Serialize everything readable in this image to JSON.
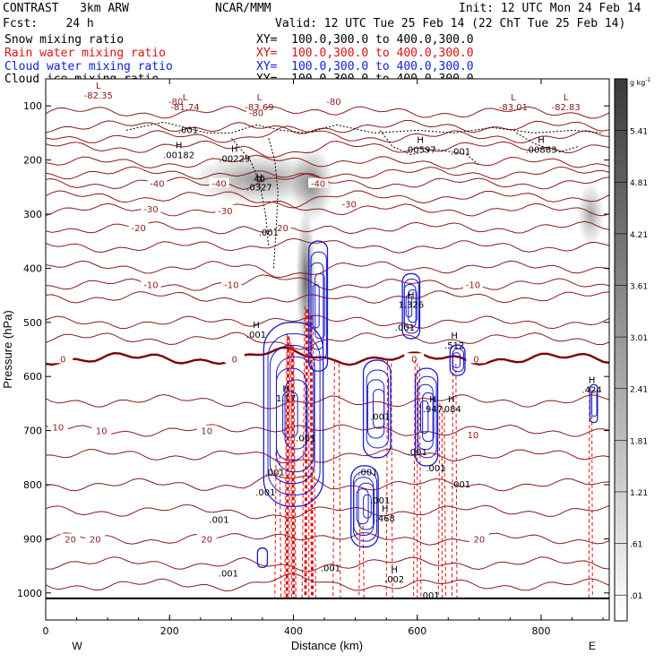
{
  "header": {
    "model": "CONTRAST   3km ARW",
    "center": "NCAR/MMM",
    "init": "Init: 12 UTC Mon 24 Feb 14",
    "fcst": "Fcst:    24 h",
    "valid": "Valid: 12 UTC Tue 25 Feb 14 (22 ChT Tue 25 Feb 14)",
    "fields": [
      {
        "label": "Snow mixing ratio",
        "xy": "XY=  100.0,300.0 to 400.0,300.0",
        "color": "#000000"
      },
      {
        "label": "Rain water mixing ratio",
        "xy": "XY=  100.0,300.0 to 400.0,300.0",
        "color": "#e01010"
      },
      {
        "label": "Cloud water mixing ratio",
        "xy": "XY=  100.0,300.0 to 400.0,300.0",
        "color": "#1020e0"
      },
      {
        "label": "Cloud ice mixing ratio",
        "xy": "XY=  100.0,300.0 to 400.0,300.0",
        "color": "#000000"
      }
    ]
  },
  "colors": {
    "temperature": "#8b1a1a",
    "freezing": "#800000",
    "rain": "#e01010",
    "cloud_water": "#1a1acc",
    "ice": "#000000"
  },
  "chart_data": {
    "type": "cross-section",
    "xlabel": "Distance (km)",
    "ylabel": "Pressure (hPa)",
    "xlim": [
      0,
      910
    ],
    "ylim": [
      1050,
      50
    ],
    "x_ticks": [
      0,
      200,
      400,
      600,
      800
    ],
    "y_ticks": [
      100,
      200,
      300,
      400,
      500,
      600,
      700,
      800,
      900,
      1000
    ],
    "side_labels": {
      "left": "W",
      "right": "E"
    },
    "colorbar": {
      "unit": "g kg",
      "unit_exp": "-1",
      "labels": [
        "5.41",
        "4.81",
        "4.21",
        "3.61",
        "3.01",
        "2.41",
        "1.81",
        "1.21",
        ".61",
        ".01"
      ]
    },
    "temperature_contours": [
      {
        "p": 985,
        "value": "",
        "labels": []
      },
      {
        "p": 945,
        "value": "",
        "labels": []
      },
      {
        "p": 900,
        "value": "20",
        "labels": [
          [
            40,
            900
          ],
          [
            80,
            900
          ],
          [
            260,
            900
          ],
          [
            700,
            900
          ]
        ]
      },
      {
        "p": 848,
        "value": "",
        "labels": []
      },
      {
        "p": 800,
        "value": "",
        "labels": []
      },
      {
        "p": 745,
        "value": "",
        "labels": []
      },
      {
        "p": 700,
        "value": "10",
        "labels": [
          [
            20,
            693
          ],
          [
            90,
            700
          ],
          [
            260,
            700
          ],
          [
            690,
            707
          ]
        ]
      },
      {
        "p": 645,
        "value": "",
        "labels": []
      },
      {
        "p": 567,
        "value": "0",
        "labels": [
          [
            28,
            567
          ],
          [
            305,
            567
          ],
          [
            595,
            567
          ],
          [
            695,
            567
          ]
        ]
      },
      {
        "p": 530,
        "value": "",
        "labels": []
      },
      {
        "p": 500,
        "value": "",
        "labels": []
      },
      {
        "p": 453,
        "value": "",
        "labels": []
      },
      {
        "p": 430,
        "value": "-10",
        "labels": [
          [
            170,
            430
          ],
          [
            300,
            430
          ],
          [
            690,
            430
          ]
        ]
      },
      {
        "p": 398,
        "value": "",
        "labels": []
      },
      {
        "p": 360,
        "value": "",
        "labels": []
      },
      {
        "p": 325,
        "value": "-20",
        "labels": [
          [
            150,
            325
          ],
          [
            380,
            325
          ]
        ]
      },
      {
        "p": 292,
        "value": "-30",
        "labels": [
          [
            170,
            290
          ],
          [
            290,
            293
          ],
          [
            490,
            281
          ]
        ]
      },
      {
        "p": 268,
        "value": "",
        "labels": []
      },
      {
        "p": 243,
        "value": "-40",
        "labels": [
          [
            180,
            243
          ],
          [
            280,
            243
          ],
          [
            440,
            243
          ]
        ]
      },
      {
        "p": 224,
        "value": "",
        "labels": []
      },
      {
        "p": 205,
        "value": "",
        "labels": []
      },
      {
        "p": 176,
        "value": "",
        "labels": []
      },
      {
        "p": 157,
        "value": "",
        "labels": []
      },
      {
        "p": 138,
        "value": "",
        "labels": []
      },
      {
        "p": 112,
        "value": "-80",
        "labels": [
          [
            210,
            91
          ],
          [
            340,
            112
          ],
          [
            465,
            91
          ]
        ]
      }
    ],
    "extremes": [
      {
        "type": "L",
        "x": 85,
        "p": 68,
        "value": "-82.35"
      },
      {
        "type": "L",
        "x": 225,
        "p": 90,
        "value": "-81.74"
      },
      {
        "type": "L",
        "x": 345,
        "p": 90,
        "value": "-83.69"
      },
      {
        "type": "L",
        "x": 755,
        "p": 90,
        "value": "-83.01"
      },
      {
        "type": "L",
        "x": 840,
        "p": 90,
        "value": "-82.83"
      },
      {
        "type": "H",
        "x": 215,
        "p": 178,
        "value": ".00182"
      },
      {
        "type": "H",
        "x": 305,
        "p": 185,
        "value": ".00229"
      },
      {
        "type": "H",
        "x": 605,
        "p": 168,
        "value": ".00597"
      },
      {
        "type": "H",
        "x": 800,
        "p": 168,
        "value": ".00863"
      },
      {
        "type": "H",
        "x": 345,
        "p": 238,
        "value": ".0327"
      },
      {
        "type": "H",
        "x": 590,
        "p": 455,
        "value": "1.326"
      },
      {
        "type": "H",
        "x": 340,
        "p": 510,
        "value": ".001"
      },
      {
        "type": "H",
        "x": 660,
        "p": 530,
        "value": ".512"
      },
      {
        "type": "H",
        "x": 388,
        "p": 628,
        "value": "1.17"
      },
      {
        "type": "H",
        "x": 625,
        "p": 648,
        "value": ".947"
      },
      {
        "type": "H",
        "x": 655,
        "p": 648,
        "value": ".084"
      },
      {
        "type": "H",
        "x": 882,
        "p": 612,
        "value": ".424"
      },
      {
        "type": "H",
        "x": 548,
        "p": 850,
        "value": ".468"
      },
      {
        "type": "H",
        "x": 563,
        "p": 962,
        "value": ".002"
      }
    ],
    "misc_labels": [
      {
        "x": 230,
        "p": 150,
        "text": ".001"
      },
      {
        "x": 345,
        "p": 240,
        "text": "40"
      },
      {
        "x": 670,
        "p": 190,
        "text": ".001"
      },
      {
        "x": 360,
        "p": 340,
        "text": ".001"
      },
      {
        "x": 580,
        "p": 515,
        "text": ".001"
      },
      {
        "x": 540,
        "p": 680,
        "text": ".001"
      },
      {
        "x": 420,
        "p": 720,
        "text": ".001"
      },
      {
        "x": 370,
        "p": 783,
        "text": ".001"
      },
      {
        "x": 520,
        "p": 783,
        "text": ".001"
      },
      {
        "x": 600,
        "p": 745,
        "text": ".001"
      },
      {
        "x": 630,
        "p": 775,
        "text": ".001"
      },
      {
        "x": 670,
        "p": 805,
        "text": ".001"
      },
      {
        "x": 355,
        "p": 820,
        "text": ".001"
      },
      {
        "x": 540,
        "p": 835,
        "text": ".001"
      },
      {
        "x": 280,
        "p": 870,
        "text": ".001"
      },
      {
        "x": 295,
        "p": 970,
        "text": ".001"
      },
      {
        "x": 460,
        "p": 960,
        "text": ".001"
      },
      {
        "x": 620,
        "p": 1010,
        "text": ".001"
      }
    ],
    "snow_patches": [
      {
        "x": 345,
        "p": 235,
        "rx": 110,
        "ry": 48,
        "peak": 0.42
      },
      {
        "x": 430,
        "p": 245,
        "rx": 35,
        "ry": 70,
        "peak": 0.45
      },
      {
        "x": 420,
        "p": 420,
        "rx": 16,
        "ry": 130,
        "peak": 0.6
      },
      {
        "x": 880,
        "p": 300,
        "rx": 22,
        "ry": 60,
        "peak": 0.35
      }
    ],
    "cloud_water_cells": [
      {
        "x": 400,
        "p": 670,
        "rx": 48,
        "ry": 170,
        "rings": 7
      },
      {
        "x": 440,
        "p": 470,
        "rx": 15,
        "ry": 120,
        "rings": 5
      },
      {
        "x": 535,
        "p": 660,
        "rx": 22,
        "ry": 90,
        "rings": 4
      },
      {
        "x": 515,
        "p": 840,
        "rx": 22,
        "ry": 75,
        "rings": 6
      },
      {
        "x": 590,
        "p": 470,
        "rx": 14,
        "ry": 60,
        "rings": 5
      },
      {
        "x": 615,
        "p": 675,
        "rx": 18,
        "ry": 90,
        "rings": 5
      },
      {
        "x": 665,
        "p": 570,
        "rx": 12,
        "ry": 28,
        "rings": 3
      },
      {
        "x": 885,
        "p": 650,
        "rx": 6,
        "ry": 35,
        "rings": 2
      },
      {
        "x": 350,
        "p": 935,
        "rx": 8,
        "ry": 18,
        "rings": 1
      }
    ],
    "rain_columns": [
      {
        "x": 395,
        "ptop": 520,
        "pbot": 1010,
        "width": 18,
        "lines": 6
      },
      {
        "x": 425,
        "ptop": 470,
        "pbot": 1010,
        "width": 22,
        "lines": 5
      },
      {
        "x": 375,
        "ptop": 740,
        "pbot": 1010,
        "width": 10,
        "lines": 2
      },
      {
        "x": 470,
        "ptop": 570,
        "pbot": 1010,
        "width": 12,
        "lines": 2
      },
      {
        "x": 510,
        "ptop": 870,
        "pbot": 1010,
        "width": 8,
        "lines": 2
      },
      {
        "x": 555,
        "ptop": 570,
        "pbot": 1010,
        "width": 10,
        "lines": 2
      },
      {
        "x": 600,
        "ptop": 570,
        "pbot": 1010,
        "width": 12,
        "lines": 3
      },
      {
        "x": 640,
        "ptop": 650,
        "pbot": 1010,
        "width": 12,
        "lines": 3
      },
      {
        "x": 660,
        "ptop": 570,
        "pbot": 1010,
        "width": 8,
        "lines": 2
      },
      {
        "x": 880,
        "ptop": 620,
        "pbot": 1010,
        "width": 6,
        "lines": 2
      }
    ],
    "surface_p": 1010
  }
}
